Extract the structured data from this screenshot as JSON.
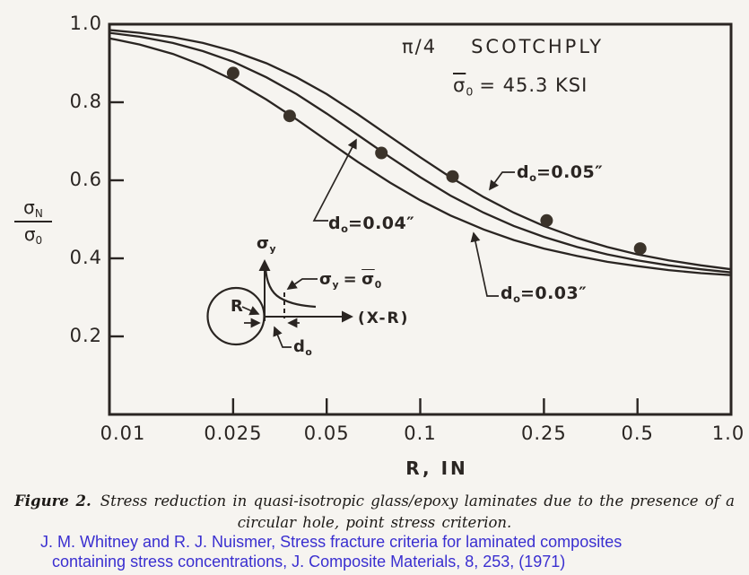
{
  "page": {
    "background": "#f6f4f0",
    "ink": "#2a2522",
    "dot_color": "#3b332a"
  },
  "chart_data": {
    "type": "line",
    "title": "π/4 SCOTCHPLY",
    "subtitle": "σ̄0 = 45.3 KSI",
    "xlabel": "R, IN",
    "ylabel": "σN/σ0",
    "x_scale": "log",
    "xlim": [
      0.01,
      1.0
    ],
    "ylim": [
      0.0,
      1.0
    ],
    "grid": false,
    "legend_position": "inline-arrow-labels",
    "x_ticks": [
      0.01,
      0.025,
      0.05,
      0.1,
      0.25,
      0.5,
      1.0
    ],
    "x_tick_labels": [
      "0.01",
      "0.025",
      "0.05",
      "0.1",
      "0.25",
      "0.5",
      "1.0"
    ],
    "y_ticks": [
      1.0,
      0.8,
      0.6,
      0.4,
      0.2
    ],
    "y_tick_labels": [
      "1.0",
      "0.8",
      "0.6",
      "0.4",
      "0.2"
    ],
    "R": [
      0.01,
      0.0125,
      0.016,
      0.02,
      0.025,
      0.032,
      0.04,
      0.05,
      0.063,
      0.08,
      0.1,
      0.125,
      0.16,
      0.2,
      0.25,
      0.32,
      0.4,
      0.5,
      0.63,
      0.8,
      1.0
    ],
    "series": [
      {
        "name": "do=0.05in",
        "d0": 0.05,
        "label": {
          "sym": "d",
          "sub": "o",
          "rest": "=0.05″"
        },
        "values": [
          0.985,
          0.978,
          0.967,
          0.952,
          0.931,
          0.9,
          0.864,
          0.821,
          0.769,
          0.712,
          0.659,
          0.608,
          0.557,
          0.517,
          0.483,
          0.452,
          0.429,
          0.41,
          0.395,
          0.382,
          0.372
        ]
      },
      {
        "name": "do=0.04in",
        "d0": 0.04,
        "label": {
          "sym": "d",
          "sub": "o",
          "rest": "=0.04″"
        },
        "values": [
          0.978,
          0.968,
          0.952,
          0.931,
          0.904,
          0.864,
          0.821,
          0.771,
          0.716,
          0.659,
          0.608,
          0.561,
          0.517,
          0.483,
          0.455,
          0.429,
          0.41,
          0.395,
          0.382,
          0.372,
          0.364
        ]
      },
      {
        "name": "do=0.03in",
        "d0": 0.03,
        "label": {
          "sym": "d",
          "sub": "o",
          "rest": "=0.03″"
        },
        "values": [
          0.964,
          0.948,
          0.924,
          0.894,
          0.857,
          0.807,
          0.756,
          0.702,
          0.647,
          0.594,
          0.549,
          0.51,
          0.474,
          0.447,
          0.425,
          0.406,
          0.391,
          0.38,
          0.37,
          0.362,
          0.357
        ]
      }
    ],
    "experiment_points": [
      [
        0.025,
        0.875
      ],
      [
        0.038,
        0.765
      ],
      [
        0.075,
        0.67
      ],
      [
        0.127,
        0.61
      ],
      [
        0.255,
        0.497
      ],
      [
        0.51,
        0.425
      ]
    ]
  },
  "header": {
    "pi_fraction": "π/4",
    "material": "SCOTCHPLY",
    "strength": {
      "sym": "σ",
      "sub": "0",
      "rest": "= 45.3 KSI"
    }
  },
  "ylabel_fraction": {
    "num_sym": "σ",
    "num_sub": "N",
    "den_sym": "σ",
    "den_sub": "0"
  },
  "xlabel": "R, IN",
  "inset": {
    "yaxis_label": {
      "sym": "σ",
      "sub": "y"
    },
    "criterion": {
      "s1": "σ",
      "sub1": "y",
      "eq": "=",
      "s2": "σ",
      "sub2": "0"
    },
    "xaxis_label": "(X-R)",
    "radius_label": "R",
    "distance_label": {
      "sym": "d",
      "sub": "o"
    }
  },
  "caption": {
    "label": "Figure 2.",
    "line1": "Stress reduction in quasi-isotropic glass/epoxy laminates due to the presence of a",
    "line2": "circular hole, point stress criterion."
  },
  "citation": {
    "color": "#3a2fd0",
    "line1": "J. M. Whitney and R. J. Nuismer, Stress fracture criteria for laminated composites",
    "line2": "containing stress concentrations, J. Composite Materials, 8, 253, (1971)"
  }
}
